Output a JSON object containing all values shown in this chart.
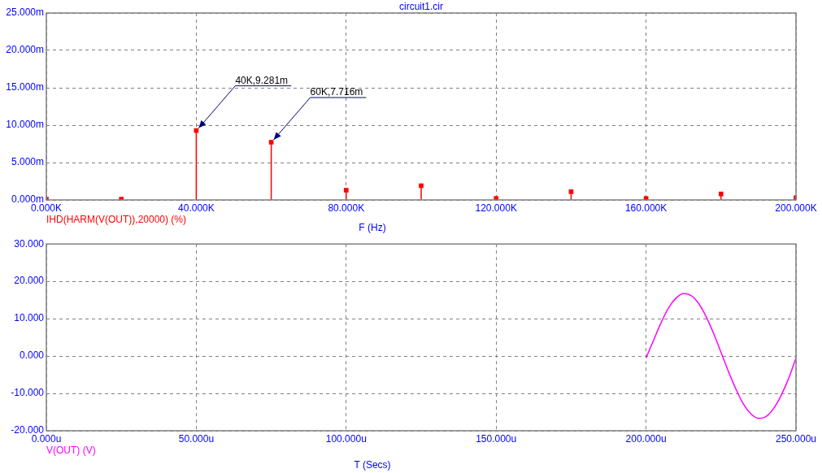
{
  "chart_data": [
    {
      "type": "lollipop",
      "title": "circuit1.cir",
      "xlabel": "F (Hz)",
      "x": [
        0,
        20000,
        40000,
        60000,
        80000,
        100000,
        120000,
        140000,
        160000,
        180000,
        200000
      ],
      "series": [
        {
          "name": "IHD(HARM(V(OUT)),20000) (%)",
          "color": "#ff0000",
          "values": [
            0.1,
            0.1,
            9.281,
            7.716,
            1.3,
            1.9,
            0.2,
            1.1,
            0.2,
            0.8,
            0.3
          ]
        }
      ],
      "xlim": [
        0,
        200000
      ],
      "xticks": [
        {
          "value": 0,
          "label": "0.000K"
        },
        {
          "value": 40000,
          "label": "40.000K"
        },
        {
          "value": 80000,
          "label": "80.000K"
        },
        {
          "value": 120000,
          "label": "120.000K"
        },
        {
          "value": 160000,
          "label": "160.000K"
        },
        {
          "value": 200000,
          "label": "200.000K"
        }
      ],
      "ylim": [
        0,
        25
      ],
      "yticks": [
        {
          "value": 0,
          "label": "0.000m"
        },
        {
          "value": 5,
          "label": "5.000m"
        },
        {
          "value": 10,
          "label": "10.000m"
        },
        {
          "value": 15,
          "label": "15.000m"
        },
        {
          "value": 20,
          "label": "20.000m"
        },
        {
          "value": 25,
          "label": "25.000m"
        }
      ],
      "grid": true,
      "marker": "square",
      "annotations": [
        {
          "text": "40K,9.281m",
          "x": 40000,
          "y": 9.281
        },
        {
          "text": "60K,7.716m",
          "x": 60000,
          "y": 7.716
        }
      ]
    },
    {
      "type": "line",
      "xlabel": "T (Secs)",
      "x": [
        200,
        202.5,
        205,
        207.5,
        210,
        212.5,
        215,
        217.5,
        220,
        222.5,
        225,
        227.5,
        230,
        232.5,
        235,
        237.5,
        240,
        242.5,
        245,
        247.5,
        250
      ],
      "series": [
        {
          "name": "V(OUT) (V)",
          "color": "#ff00ff",
          "values": [
            -0.5,
            4.2,
            8.9,
            12.9,
            15.5,
            16.7,
            16.2,
            14.1,
            10.6,
            6.1,
            1.0,
            -4.2,
            -8.9,
            -12.9,
            -15.5,
            -16.7,
            -16.2,
            -14.1,
            -10.6,
            -6.1,
            -0.5
          ]
        }
      ],
      "xlim": [
        0,
        250
      ],
      "xticks": [
        {
          "value": 0,
          "label": "0.000u"
        },
        {
          "value": 50,
          "label": "50.000u"
        },
        {
          "value": 100,
          "label": "100.000u"
        },
        {
          "value": 150,
          "label": "150.000u"
        },
        {
          "value": 200,
          "label": "200.000u"
        },
        {
          "value": 250,
          "label": "250.000u"
        }
      ],
      "ylim": [
        -20,
        30
      ],
      "yticks": [
        {
          "value": -20,
          "label": "-20.000"
        },
        {
          "value": -10,
          "label": "-10.000"
        },
        {
          "value": 0,
          "label": "0.000"
        },
        {
          "value": 10,
          "label": "10.000"
        },
        {
          "value": 20,
          "label": "20.000"
        },
        {
          "value": 30,
          "label": "30.000"
        }
      ],
      "grid": true,
      "marker": "none"
    }
  ]
}
